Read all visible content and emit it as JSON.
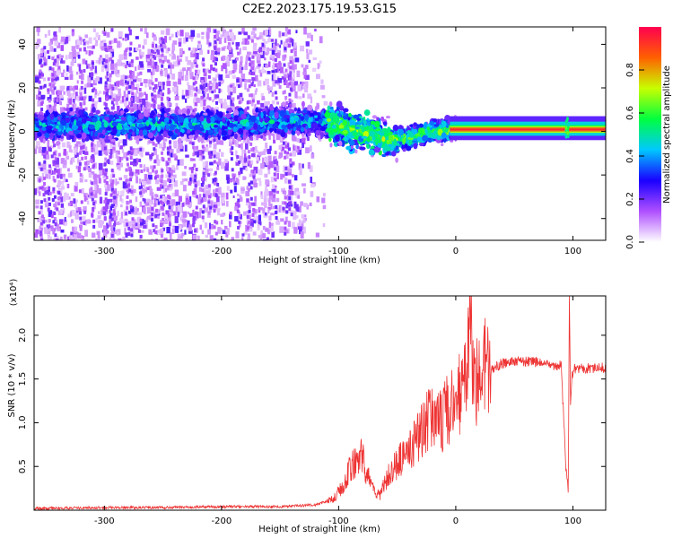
{
  "title": "C2E2.2023.175.19.53.G15",
  "chart_data": [
    {
      "type": "heatmap",
      "xlabel": "Height of straight line (km)",
      "ylabel": "Frequency (Hz)",
      "xlim": [
        -360,
        128
      ],
      "ylim": [
        -50,
        48
      ],
      "x_ticks": [
        -300,
        -200,
        -100,
        0,
        100
      ],
      "y_ticks": [
        -40,
        -20,
        0,
        20,
        40
      ],
      "grid": false,
      "colorbar": {
        "label": "Normalized spectral amplitude",
        "range": [
          0.0,
          1.0
        ],
        "ticks": [
          "0.0",
          "0.2",
          "0.4",
          "0.6",
          "0.8"
        ],
        "colors": [
          "#ffffff",
          "#b050ff",
          "#1a00ff",
          "#00c8ff",
          "#00ff40",
          "#c8ff00",
          "#ff6000",
          "#ff0050"
        ]
      },
      "features": {
        "center_track": [
          [
            -360,
            3
          ],
          [
            -200,
            3
          ],
          [
            -130,
            5
          ],
          [
            -110,
            4
          ],
          [
            -90,
            1
          ],
          [
            -70,
            -2
          ],
          [
            -55,
            -4
          ],
          [
            -40,
            -3
          ],
          [
            -20,
            0
          ],
          [
            0,
            1
          ],
          [
            20,
            1
          ],
          [
            60,
            1
          ],
          [
            100,
            1
          ],
          [
            128,
            2
          ]
        ],
        "strong_line_from_km": 0,
        "spike_at_km": 95
      }
    },
    {
      "type": "line",
      "xlabel": "Height of straight line (km)",
      "ylabel": "SNR (10 * v/v)",
      "y_exponent_label": "(x10⁴)",
      "xlim": [
        -360,
        128
      ],
      "ylim": [
        0,
        2.45
      ],
      "x_ticks": [
        -300,
        -200,
        -100,
        0,
        100
      ],
      "y_ticks": [
        "0.5",
        "1.0",
        "1.5",
        "2.0"
      ],
      "grid": false,
      "series": [
        {
          "color": "#ee3333",
          "x": [
            -360,
            -300,
            -250,
            -200,
            -150,
            -120,
            -105,
            -100,
            -95,
            -90,
            -85,
            -80,
            -75,
            -70,
            -65,
            -60,
            -55,
            -50,
            -45,
            -40,
            -35,
            -30,
            -25,
            -20,
            -15,
            -10,
            -5,
            0,
            5,
            10,
            12,
            15,
            20,
            25,
            30,
            35,
            40,
            50,
            60,
            70,
            80,
            90,
            94,
            96,
            97,
            98,
            99,
            100,
            102,
            110,
            120,
            128
          ],
          "y": [
            0.02,
            0.03,
            0.03,
            0.04,
            0.04,
            0.06,
            0.12,
            0.2,
            0.3,
            0.45,
            0.55,
            0.6,
            0.35,
            0.2,
            0.15,
            0.3,
            0.45,
            0.5,
            0.55,
            0.6,
            0.7,
            0.8,
            0.95,
            1.0,
            0.9,
            1.0,
            1.1,
            1.15,
            1.25,
            1.35,
            2.1,
            1.3,
            1.35,
            1.5,
            1.6,
            1.65,
            1.68,
            1.7,
            1.7,
            1.7,
            1.65,
            1.65,
            0.5,
            0.25,
            2.4,
            1.2,
            1.5,
            1.6,
            1.62,
            1.62,
            1.63,
            1.63
          ]
        }
      ]
    }
  ]
}
